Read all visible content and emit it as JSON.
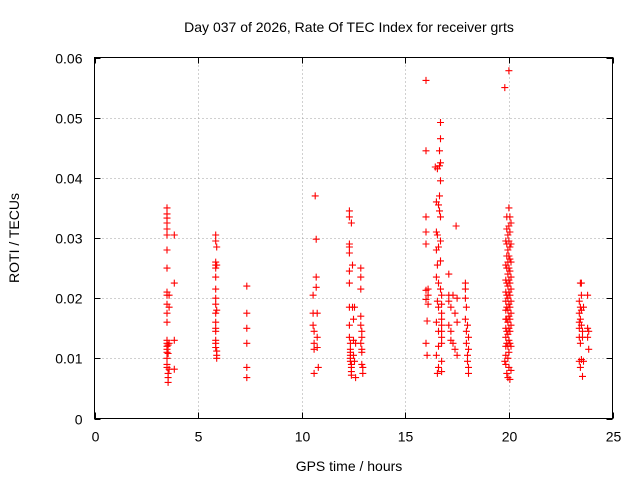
{
  "chart_data": {
    "type": "scatter",
    "title": "Day 037 of 2026, Rate Of TEC Index for receiver grts",
    "xlabel": "GPS time / hours",
    "ylabel": "ROTI / TECUs",
    "xlim": [
      0,
      25
    ],
    "ylim": [
      0,
      0.06
    ],
    "xticks": [
      0,
      5,
      10,
      15,
      20,
      25
    ],
    "xtick_labels": [
      "0",
      "5",
      "10",
      "15",
      "20",
      "25"
    ],
    "yticks": [
      0,
      0.01,
      0.02,
      0.03,
      0.04,
      0.05,
      0.06
    ],
    "ytick_labels": [
      "0",
      "0.01",
      "0.02",
      "0.03",
      "0.04",
      "0.05",
      "0.06"
    ],
    "grid": true,
    "legend": "none",
    "marker": "plus",
    "color": "#ff0000",
    "series": [
      {
        "x": [
          3.5,
          3.5,
          3.5,
          3.5,
          3.5,
          3.5,
          3.5,
          3.5,
          3.5,
          3.5,
          3.5,
          3.5,
          3.5,
          3.5,
          3.5,
          3.5,
          3.5,
          3.5,
          3.5,
          3.5,
          3.5,
          3.55,
          3.55,
          3.55,
          3.55,
          3.55,
          3.6,
          3.6,
          3.6,
          3.6,
          3.85,
          3.85,
          3.85,
          3.85,
          5.85,
          5.85,
          5.85,
          5.85,
          5.85,
          5.85,
          5.85,
          5.85,
          5.85,
          5.85,
          5.85,
          5.85,
          5.85,
          5.85,
          5.85,
          5.85,
          5.9,
          5.9,
          5.9,
          5.9,
          5.9,
          5.9,
          7.35,
          7.35,
          7.35,
          7.35,
          7.35,
          7.35,
          10.55,
          10.55,
          10.55,
          10.6,
          10.6,
          10.6,
          10.6,
          10.65,
          10.7,
          10.7,
          10.7,
          10.75,
          10.75,
          10.75,
          10.8,
          12.3,
          12.3,
          12.3,
          12.3,
          12.3,
          12.3,
          12.3,
          12.3,
          12.3,
          12.3,
          12.35,
          12.35,
          12.35,
          12.35,
          12.35,
          12.35,
          12.4,
          12.4,
          12.4,
          12.4,
          12.4,
          12.45,
          12.45,
          12.5,
          12.5,
          12.5,
          12.55,
          12.55,
          12.6,
          12.6,
          12.85,
          12.85,
          12.85,
          12.85,
          12.85,
          12.85,
          12.9,
          12.9,
          12.9,
          12.9,
          12.9,
          12.95,
          12.95,
          16.0,
          16.0,
          16.0,
          16.0,
          16.0,
          16.0,
          16.0,
          16.0,
          16.05,
          16.05,
          16.1,
          16.1,
          16.1,
          16.45,
          16.5,
          16.5,
          16.5,
          16.5,
          16.5,
          16.5,
          16.55,
          16.55,
          16.55,
          16.55,
          16.55,
          16.6,
          16.6,
          16.6,
          16.6,
          16.6,
          16.6,
          16.6,
          16.65,
          16.65,
          16.65,
          16.65,
          16.7,
          16.7,
          16.7,
          16.7,
          16.7,
          16.7,
          16.7,
          16.7,
          16.75,
          16.75,
          16.75,
          16.75,
          16.75,
          16.75,
          16.75,
          16.75,
          16.75,
          16.75,
          17.1,
          17.1,
          17.1,
          17.1,
          17.2,
          17.2,
          17.2,
          17.3,
          17.3,
          17.4,
          17.4,
          17.45,
          17.5,
          17.5,
          17.5,
          17.9,
          17.9,
          17.9,
          17.9,
          17.95,
          17.95,
          17.95,
          18.0,
          18.0,
          18.0,
          18.05,
          18.05,
          18.05,
          18.05,
          19.8,
          19.8,
          19.85,
          19.85,
          19.85,
          19.85,
          19.85,
          19.85,
          19.85,
          19.85,
          19.85,
          19.85,
          19.85,
          19.85,
          19.9,
          19.9,
          19.9,
          19.9,
          19.9,
          19.9,
          19.9,
          19.9,
          19.9,
          19.9,
          19.9,
          19.9,
          19.95,
          19.95,
          19.95,
          19.95,
          19.95,
          19.95,
          19.95,
          19.95,
          19.95,
          19.95,
          19.95,
          19.95,
          20.0,
          20.0,
          20.0,
          20.0,
          20.0,
          20.0,
          20.0,
          20.0,
          20.0,
          20.0,
          20.0,
          20.0,
          20.0,
          20.0,
          20.05,
          20.05,
          20.05,
          20.05,
          20.05,
          20.05,
          20.05,
          20.05,
          20.05,
          20.05,
          20.05,
          20.05,
          20.1,
          20.1,
          20.1,
          20.1,
          20.1,
          20.1,
          20.1,
          20.1,
          20.1,
          20.1,
          23.4,
          23.4,
          23.4,
          23.4,
          23.4,
          23.4,
          23.45,
          23.45,
          23.45,
          23.45,
          23.45,
          23.5,
          23.5,
          23.5,
          23.5,
          23.5,
          23.55,
          23.55,
          23.55,
          23.6,
          23.6,
          23.8,
          23.8,
          23.8,
          23.85,
          23.85
        ],
        "y": [
          0.035,
          0.034,
          0.0333,
          0.0325,
          0.0315,
          0.0305,
          0.028,
          0.025,
          0.021,
          0.0205,
          0.019,
          0.0175,
          0.016,
          0.013,
          0.0125,
          0.012,
          0.0115,
          0.011,
          0.01,
          0.009,
          0.0085,
          0.0075,
          0.0068,
          0.006,
          0.0108,
          0.0122,
          0.0082,
          0.0125,
          0.0205,
          0.0185,
          0.0305,
          0.0225,
          0.013,
          0.0082,
          0.0305,
          0.0295,
          0.026,
          0.0255,
          0.025,
          0.0235,
          0.0215,
          0.02,
          0.019,
          0.0175,
          0.016,
          0.015,
          0.0145,
          0.013,
          0.0125,
          0.0118,
          0.0112,
          0.0105,
          0.01,
          0.0285,
          0.0255,
          0.018,
          0.022,
          0.0175,
          0.015,
          0.0125,
          0.0085,
          0.0068,
          0.0205,
          0.0175,
          0.0155,
          0.0145,
          0.0125,
          0.0115,
          0.0075,
          0.037,
          0.0298,
          0.0235,
          0.0218,
          0.0175,
          0.0135,
          0.0118,
          0.0085,
          0.0345,
          0.0335,
          0.029,
          0.0285,
          0.0275,
          0.0245,
          0.0225,
          0.0185,
          0.0155,
          0.0135,
          0.0125,
          0.0115,
          0.011,
          0.0105,
          0.01,
          0.0095,
          0.009,
          0.0085,
          0.0078,
          0.0072,
          0.0325,
          0.0255,
          0.0185,
          0.0165,
          0.013,
          0.0105,
          0.0095,
          0.0185,
          0.0125,
          0.0068,
          0.025,
          0.0235,
          0.0215,
          0.017,
          0.0155,
          0.0125,
          0.0145,
          0.0135,
          0.0115,
          0.011,
          0.009,
          0.0085,
          0.0075,
          0.0562,
          0.0445,
          0.0335,
          0.031,
          0.029,
          0.0213,
          0.0198,
          0.0125,
          0.0162,
          0.0105,
          0.0215,
          0.0205,
          0.019,
          0.0418,
          0.036,
          0.031,
          0.028,
          0.0235,
          0.016,
          0.0105,
          0.0415,
          0.0305,
          0.0255,
          0.0195,
          0.0075,
          0.0355,
          0.0285,
          0.0225,
          0.0185,
          0.0145,
          0.012,
          0.0085,
          0.0445,
          0.042,
          0.037,
          0.0345,
          0.0492,
          0.0465,
          0.0425,
          0.0395,
          0.0335,
          0.0295,
          0.0262,
          0.0215,
          0.0205,
          0.019,
          0.0175,
          0.0165,
          0.0155,
          0.0145,
          0.0135,
          0.0125,
          0.0095,
          0.0078,
          0.024,
          0.0205,
          0.0195,
          0.0155,
          0.0185,
          0.0145,
          0.013,
          0.0205,
          0.0125,
          0.0175,
          0.0115,
          0.032,
          0.02,
          0.016,
          0.0105,
          0.0225,
          0.0215,
          0.02,
          0.0165,
          0.0185,
          0.0145,
          0.0125,
          0.0155,
          0.0105,
          0.0095,
          0.0135,
          0.0115,
          0.0085,
          0.0075,
          0.055,
          0.0095,
          0.0295,
          0.0255,
          0.023,
          0.021,
          0.0195,
          0.018,
          0.0165,
          0.015,
          0.0135,
          0.012,
          0.0105,
          0.009,
          0.0335,
          0.0315,
          0.029,
          0.027,
          0.025,
          0.0225,
          0.0205,
          0.0185,
          0.0165,
          0.0145,
          0.0125,
          0.0075,
          0.0305,
          0.028,
          0.026,
          0.024,
          0.022,
          0.02,
          0.018,
          0.016,
          0.014,
          0.012,
          0.01,
          0.0068,
          0.0578,
          0.035,
          0.032,
          0.0295,
          0.027,
          0.025,
          0.023,
          0.021,
          0.019,
          0.017,
          0.015,
          0.013,
          0.011,
          0.0085,
          0.0335,
          0.031,
          0.0285,
          0.0265,
          0.0245,
          0.0225,
          0.0205,
          0.0185,
          0.0165,
          0.0145,
          0.0125,
          0.0065,
          0.0325,
          0.029,
          0.026,
          0.0235,
          0.0215,
          0.0195,
          0.0175,
          0.0155,
          0.012,
          0.008,
          0.0195,
          0.0175,
          0.016,
          0.015,
          0.0135,
          0.0095,
          0.0225,
          0.0185,
          0.0165,
          0.0125,
          0.0085,
          0.0225,
          0.0205,
          0.018,
          0.0155,
          0.0098,
          0.0145,
          0.0135,
          0.007,
          0.0095,
          0.0185,
          0.0205,
          0.015,
          0.0135,
          0.0145,
          0.0115
        ]
      }
    ]
  }
}
